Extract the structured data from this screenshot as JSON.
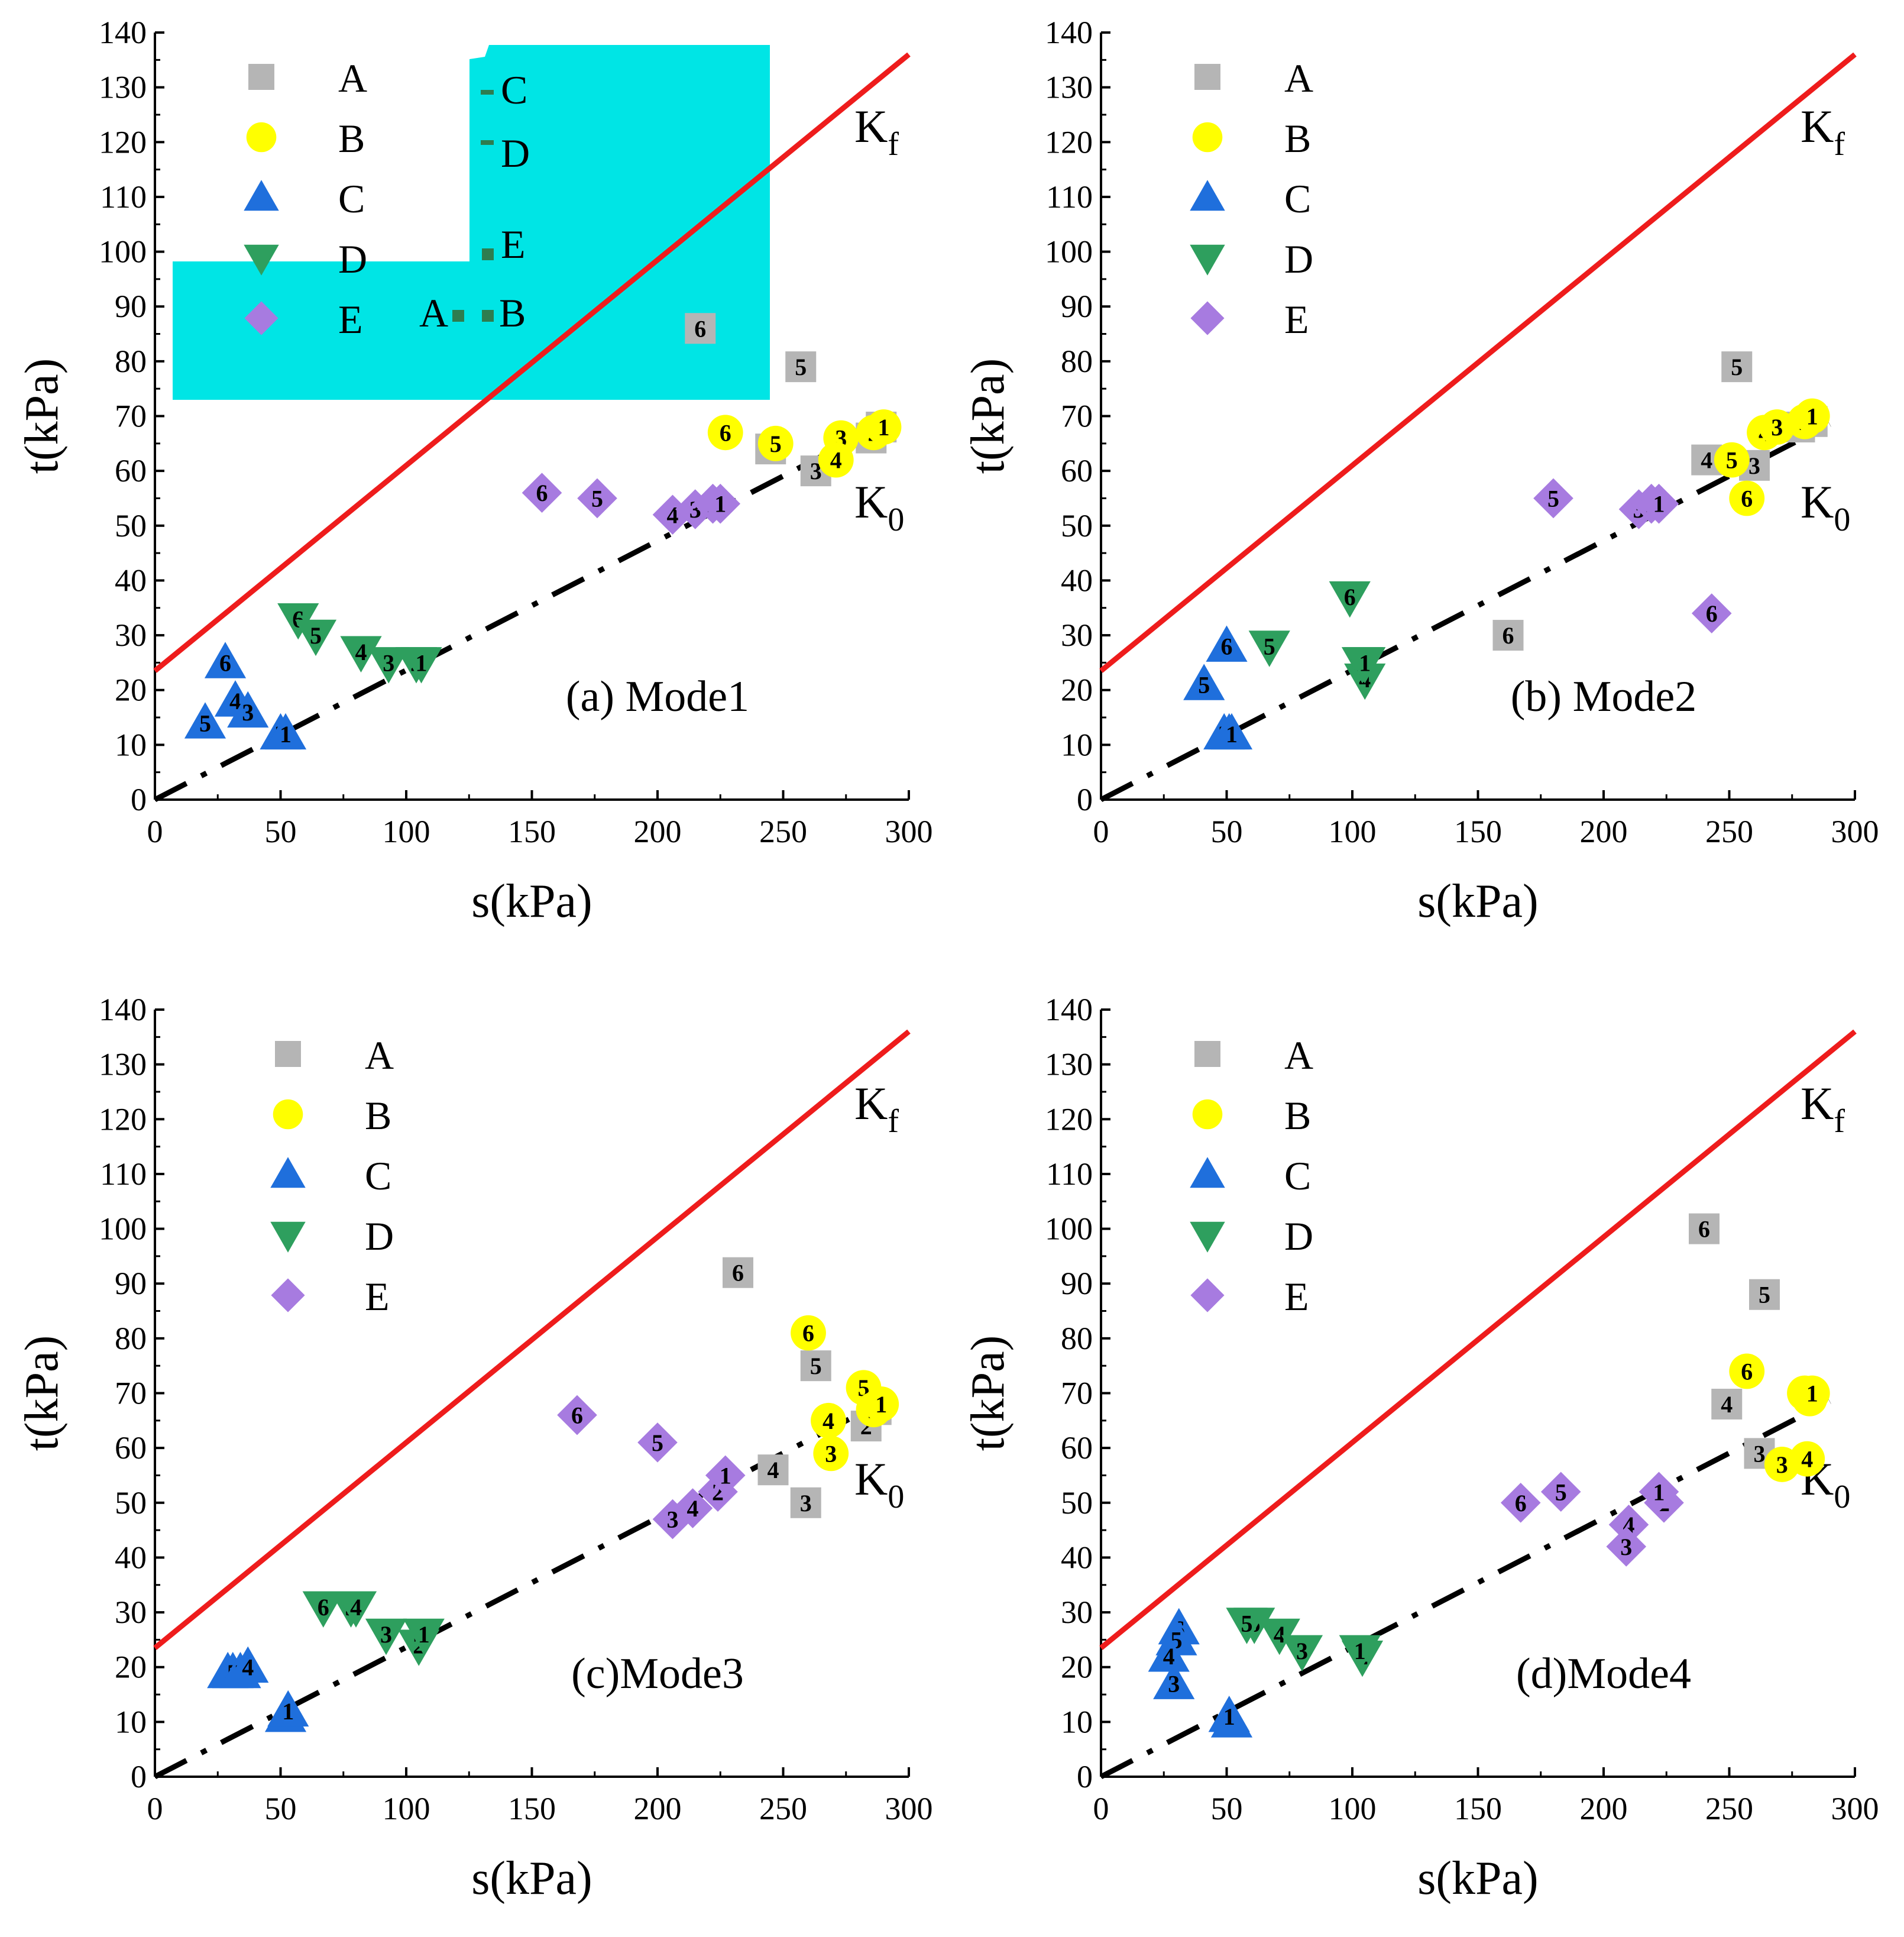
{
  "chart_data": [
    {
      "type": "scatter",
      "title": "(a) Mode1",
      "xlabel": "s(kPa)",
      "ylabel": "t(kPa)",
      "xlim": [
        0,
        300
      ],
      "ylim": [
        0,
        140
      ],
      "xticks": [
        0,
        50,
        100,
        150,
        200,
        250,
        300
      ],
      "yticks": [
        0,
        10,
        20,
        30,
        40,
        50,
        60,
        70,
        80,
        90,
        100,
        110,
        120,
        130,
        140
      ],
      "lines": [
        {
          "name": "Kf",
          "label": "K",
          "sub": "f",
          "x": [
            0,
            300
          ],
          "y": [
            23.5,
            136
          ]
        },
        {
          "name": "K0",
          "label": "K",
          "sub": "0",
          "x": [
            0,
            290
          ],
          "y": [
            0,
            68.5
          ]
        }
      ],
      "legend": [
        "A",
        "B",
        "C",
        "D",
        "E"
      ],
      "inset": {
        "position": "top-left",
        "labels": [
          "A",
          "B",
          "C",
          "D",
          "E"
        ]
      },
      "series": [
        {
          "name": "A",
          "points": [
            [
              217,
              86,
              "6"
            ],
            [
              257,
              79,
              "5"
            ],
            [
              245,
              64,
              "4"
            ],
            [
              263,
              60,
              "3"
            ],
            [
              285,
              66,
              "2"
            ],
            [
              289,
              68,
              "1"
            ]
          ]
        },
        {
          "name": "B",
          "points": [
            [
              227,
              67,
              "6"
            ],
            [
              247,
              65,
              "5"
            ],
            [
              273,
              66,
              "3"
            ],
            [
              271,
              62,
              "4"
            ],
            [
              286,
              67,
              "2"
            ],
            [
              290,
              68,
              "1"
            ]
          ]
        },
        {
          "name": "C",
          "points": [
            [
              28,
              25,
              "6"
            ],
            [
              20,
              14,
              "5"
            ],
            [
              32,
              18,
              "4"
            ],
            [
              37,
              16,
              "3"
            ],
            [
              50,
              12,
              "2"
            ],
            [
              52,
              12,
              "1"
            ]
          ]
        },
        {
          "name": "D",
          "points": [
            [
              57,
              33,
              "6"
            ],
            [
              64,
              30,
              "5"
            ],
            [
              82,
              27,
              "4"
            ],
            [
              93,
              25,
              "3"
            ],
            [
              104,
              25,
              "2"
            ],
            [
              106,
              25,
              "1"
            ]
          ]
        },
        {
          "name": "E",
          "points": [
            [
              154,
              56,
              "6"
            ],
            [
              176,
              55,
              "5"
            ],
            [
              206,
              52,
              "4"
            ],
            [
              215,
              53,
              "3"
            ],
            [
              222,
              54,
              "2"
            ],
            [
              225,
              54,
              "1"
            ]
          ]
        }
      ]
    },
    {
      "type": "scatter",
      "title": "(b) Mode2",
      "xlabel": "s(kPa)",
      "ylabel": "t(kPa)",
      "xlim": [
        0,
        300
      ],
      "ylim": [
        0,
        140
      ],
      "xticks": [
        0,
        50,
        100,
        150,
        200,
        250,
        300
      ],
      "yticks": [
        0,
        10,
        20,
        30,
        40,
        50,
        60,
        70,
        80,
        90,
        100,
        110,
        120,
        130,
        140
      ],
      "lines": [
        {
          "name": "Kf",
          "label": "K",
          "sub": "f",
          "x": [
            0,
            300
          ],
          "y": [
            23.5,
            136
          ]
        },
        {
          "name": "K0",
          "label": "K",
          "sub": "0",
          "x": [
            0,
            290
          ],
          "y": [
            0,
            68.5
          ]
        }
      ],
      "legend": [
        "A",
        "B",
        "C",
        "D",
        "E"
      ],
      "series": [
        {
          "name": "A",
          "points": [
            [
              162,
              30,
              "6"
            ],
            [
              253,
              79,
              "5"
            ],
            [
              241,
              62,
              "4"
            ],
            [
              260,
              61,
              "3"
            ],
            [
              278,
              68,
              "2"
            ],
            [
              283,
              69,
              "1"
            ]
          ]
        },
        {
          "name": "B",
          "points": [
            [
              257,
              55,
              "6"
            ],
            [
              251,
              62,
              "5"
            ],
            [
              264,
              67,
              "4"
            ],
            [
              269,
              68,
              "3"
            ],
            [
              280,
              69,
              "2"
            ],
            [
              283,
              70,
              "1"
            ]
          ]
        },
        {
          "name": "C",
          "points": [
            [
              50,
              28,
              "6"
            ],
            [
              41,
              21,
              "5"
            ],
            [
              49,
              12,
              "3"
            ],
            [
              51,
              12,
              "2"
            ],
            [
              52,
              12,
              "1"
            ]
          ]
        },
        {
          "name": "D",
          "points": [
            [
              99,
              37,
              "6"
            ],
            [
              67,
              28,
              "5"
            ],
            [
              105,
              22,
              "4"
            ],
            [
              104,
              25,
              "3"
            ],
            [
              105,
              25,
              "1"
            ]
          ]
        },
        {
          "name": "E",
          "points": [
            [
              243,
              34,
              "6"
            ],
            [
              180,
              55,
              "5"
            ],
            [
              214,
              53,
              "3"
            ],
            [
              219,
              54,
              "2"
            ],
            [
              222,
              54,
              "1"
            ]
          ]
        }
      ]
    },
    {
      "type": "scatter",
      "title": "(c)Mode3",
      "xlabel": "s(kPa)",
      "ylabel": "t(kPa)",
      "xlim": [
        0,
        300
      ],
      "ylim": [
        0,
        140
      ],
      "xticks": [
        0,
        50,
        100,
        150,
        200,
        250,
        300
      ],
      "yticks": [
        0,
        10,
        20,
        30,
        40,
        50,
        60,
        70,
        80,
        90,
        100,
        110,
        120,
        130,
        140
      ],
      "lines": [
        {
          "name": "Kf",
          "label": "K",
          "sub": "f",
          "x": [
            0,
            300
          ],
          "y": [
            23.5,
            136
          ]
        },
        {
          "name": "K0",
          "label": "K",
          "sub": "0",
          "x": [
            0,
            290
          ],
          "y": [
            0,
            68.5
          ]
        }
      ],
      "legend": [
        "A",
        "B",
        "C",
        "D",
        "E"
      ],
      "series": [
        {
          "name": "A",
          "points": [
            [
              232,
              92,
              "6"
            ],
            [
              263,
              75,
              "5"
            ],
            [
              246,
              56,
              "4"
            ],
            [
              259,
              50,
              "3"
            ],
            [
              283,
              64,
              "2"
            ],
            [
              287,
              67,
              "1"
            ]
          ]
        },
        {
          "name": "B",
          "points": [
            [
              260,
              81,
              "6"
            ],
            [
              282,
              71,
              "5"
            ],
            [
              268,
              65,
              "4"
            ],
            [
              269,
              59,
              "3"
            ],
            [
              286,
              67,
              "2"
            ],
            [
              289,
              68,
              "1"
            ]
          ]
        },
        {
          "name": "C",
          "points": [
            [
              29,
              19,
              "6"
            ],
            [
              31,
              19,
              "5"
            ],
            [
              34,
              19,
              "3"
            ],
            [
              37,
              20,
              "4"
            ],
            [
              52,
              11,
              "2"
            ],
            [
              53,
              12,
              "1"
            ]
          ]
        },
        {
          "name": "D",
          "points": [
            [
              67,
              31,
              "6"
            ],
            [
              78,
              31,
              "5"
            ],
            [
              80,
              31,
              "4"
            ],
            [
              92,
              26,
              "3"
            ],
            [
              105,
              24,
              "2"
            ],
            [
              107,
              26,
              "1"
            ]
          ]
        },
        {
          "name": "E",
          "points": [
            [
              168,
              66,
              "6"
            ],
            [
              200,
              61,
              "5"
            ],
            [
              214,
              49,
              "4"
            ],
            [
              206,
              47,
              "3"
            ],
            [
              224,
              52,
              "2"
            ],
            [
              227,
              55,
              "1"
            ]
          ]
        }
      ]
    },
    {
      "type": "scatter",
      "title": "(d)Mode4",
      "xlabel": "s(kPa)",
      "ylabel": "t(kPa)",
      "xlim": [
        0,
        300
      ],
      "ylim": [
        0,
        140
      ],
      "xticks": [
        0,
        50,
        100,
        150,
        200,
        250,
        300
      ],
      "yticks": [
        0,
        10,
        20,
        30,
        40,
        50,
        60,
        70,
        80,
        90,
        100,
        110,
        120,
        130,
        140
      ],
      "lines": [
        {
          "name": "Kf",
          "label": "K",
          "sub": "f",
          "x": [
            0,
            300
          ],
          "y": [
            23.5,
            136
          ]
        },
        {
          "name": "K0",
          "label": "K",
          "sub": "0",
          "x": [
            0,
            290
          ],
          "y": [
            0,
            68.5
          ]
        }
      ],
      "legend": [
        "A",
        "B",
        "C",
        "D",
        "E"
      ],
      "series": [
        {
          "name": "A",
          "points": [
            [
              240,
              100,
              "6"
            ],
            [
              264,
              88,
              "5"
            ],
            [
              249,
              68,
              "4"
            ],
            [
              262,
              59,
              "3"
            ]
          ]
        },
        {
          "name": "B",
          "points": [
            [
              257,
              74,
              "6"
            ],
            [
              280,
              70,
              "5"
            ],
            [
              281,
              58,
              "4"
            ],
            [
              271,
              57,
              "3"
            ],
            [
              282,
              69,
              "2"
            ],
            [
              283,
              70,
              "1"
            ]
          ]
        },
        {
          "name": "C",
          "points": [
            [
              31,
              27,
              "6"
            ],
            [
              30,
              25,
              "5"
            ],
            [
              27,
              22,
              "4"
            ],
            [
              29,
              17,
              "3"
            ],
            [
              52,
              10,
              "2"
            ],
            [
              51,
              11,
              "1"
            ]
          ]
        },
        {
          "name": "D",
          "points": [
            [
              61,
              28,
              "6"
            ],
            [
              58,
              28,
              "5"
            ],
            [
              71,
              26,
              "4"
            ],
            [
              80,
              23,
              "3"
            ],
            [
              104,
              22,
              "2"
            ],
            [
              103,
              23,
              "1"
            ]
          ]
        },
        {
          "name": "E",
          "points": [
            [
              167,
              50,
              "6"
            ],
            [
              183,
              52,
              "5"
            ],
            [
              210,
              46,
              "4"
            ],
            [
              209,
              42,
              "3"
            ],
            [
              224,
              50,
              "2"
            ],
            [
              222,
              52,
              "1"
            ]
          ]
        }
      ]
    }
  ],
  "styles": {
    "A": {
      "shape": "square",
      "color": "#b5b5b5"
    },
    "B": {
      "shape": "circle",
      "color": "#ffff00"
    },
    "C": {
      "shape": "triangle-up",
      "color": "#1f6fdc"
    },
    "D": {
      "shape": "triangle-down",
      "color": "#2e9f5e"
    },
    "E": {
      "shape": "diamond",
      "color": "#a77be0"
    },
    "kf_color": "#ee1c1c",
    "k0_color": "#000000",
    "inset_bg": "#00e5e5",
    "inset_marker": "#2e7d4f"
  }
}
